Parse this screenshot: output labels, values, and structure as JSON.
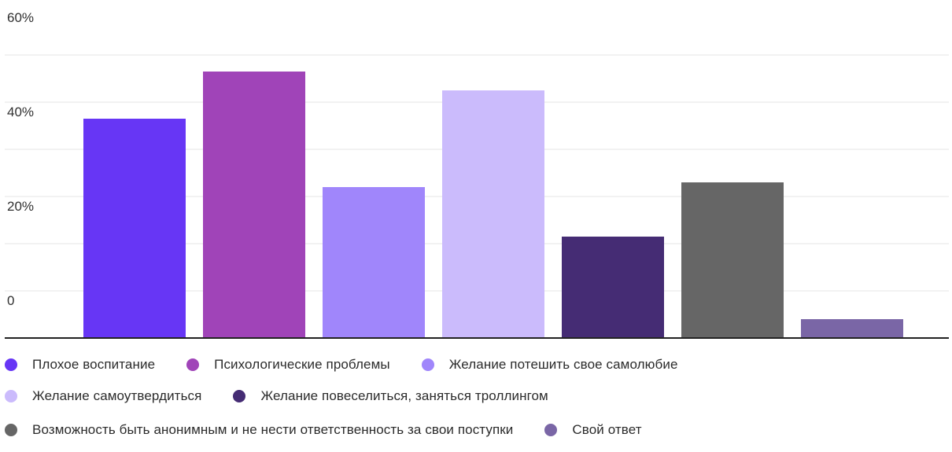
{
  "chart_data": {
    "type": "bar",
    "categories": [
      "Плохое воспитание",
      "Психологические проблемы",
      "Желание потешить свое самолюбие",
      "Желание самоутвердиться",
      "Желание повеселиться, заняться троллингом",
      "Возможность быть анонимным и не нести ответственность за свои поступки",
      "Свой ответ"
    ],
    "values": [
      46.5,
      56.5,
      32,
      52.5,
      21.5,
      33,
      4
    ],
    "colors": [
      "#6736f5",
      "#a044b8",
      "#a086fb",
      "#cbbbfc",
      "#452c74",
      "#666666",
      "#7a66a6"
    ],
    "y_ticks": [
      0,
      20,
      40,
      60
    ],
    "y_tick_labels": [
      "0",
      "20%",
      "40%",
      "60%"
    ],
    "ylim": [
      0,
      60
    ],
    "grid": true,
    "legend_position": "bottom",
    "title": "",
    "xlabel": "",
    "ylabel": ""
  },
  "legend": {
    "rows": [
      [
        {
          "label": "Плохое воспитание",
          "color": "#6736f5"
        },
        {
          "label": "Психологические проблемы",
          "color": "#a044b8"
        },
        {
          "label": "Желание потешить свое самолюбие",
          "color": "#a086fb"
        }
      ],
      [
        {
          "label": "Желание самоутвердиться",
          "color": "#cbbbfc"
        },
        {
          "label": "Желание повеселиться, заняться троллингом",
          "color": "#452c74"
        }
      ],
      [
        {
          "label": "Возможность быть анонимным и не нести ответственность за свои поступки",
          "color": "#666666"
        },
        {
          "label": "Свой ответ",
          "color": "#7a66a6"
        }
      ]
    ]
  }
}
